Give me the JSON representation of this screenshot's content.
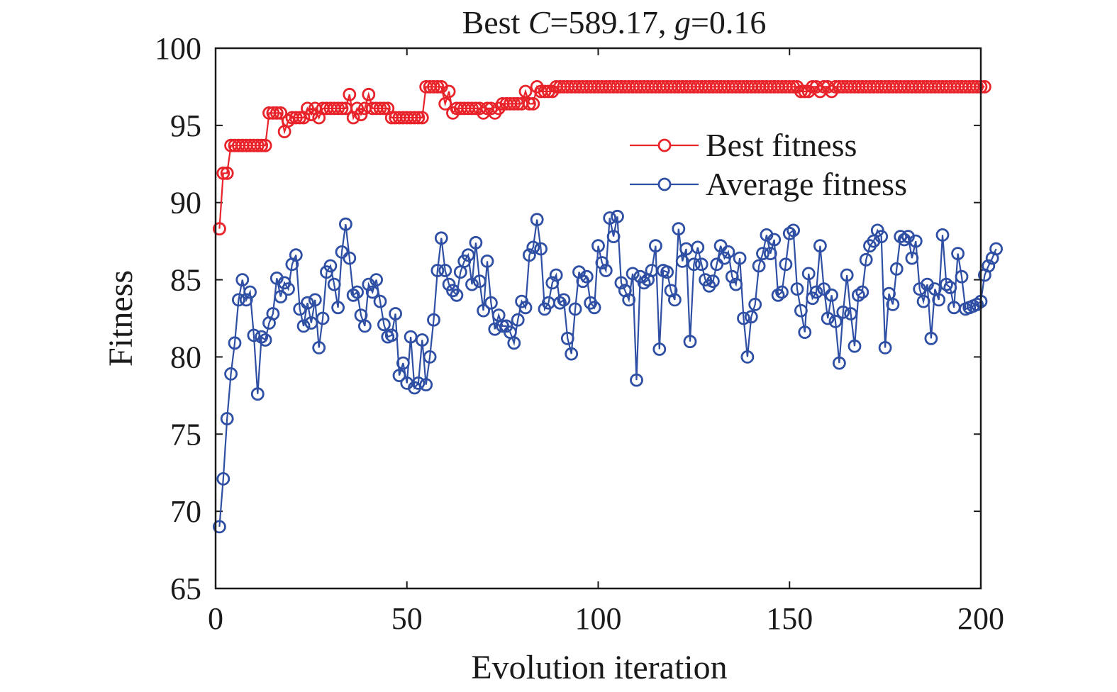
{
  "chart_data": {
    "type": "line",
    "title": {
      "prefix": "Best ",
      "c_symbol": "C",
      "c_value": "=589.17, ",
      "g_symbol": "g",
      "g_value": "=0.16"
    },
    "xlabel": "Evolution iteration",
    "ylabel": "Fitness",
    "xlim": [
      0,
      200
    ],
    "ylim": [
      65,
      100
    ],
    "xticks": [
      0,
      50,
      100,
      150,
      200
    ],
    "yticks": [
      65,
      70,
      75,
      80,
      85,
      90,
      95,
      100
    ],
    "grid": false,
    "legend_position": "upper-right",
    "series": [
      {
        "name": "Best fitness",
        "color": "#e8232a",
        "marker": "open-circle",
        "x_start": 1,
        "x_step": 1,
        "values": [
          88.3,
          91.9,
          91.9,
          93.7,
          93.7,
          93.7,
          93.7,
          93.7,
          93.7,
          93.7,
          93.7,
          93.7,
          93.7,
          95.8,
          95.8,
          95.8,
          95.8,
          94.6,
          95.3,
          95.5,
          95.5,
          95.5,
          95.5,
          96.1,
          95.7,
          96.1,
          95.5,
          96.1,
          96.1,
          96.1,
          96.1,
          96.1,
          96.1,
          96.1,
          97.0,
          95.5,
          96.1,
          95.7,
          96.1,
          97.0,
          96.1,
          96.1,
          96.1,
          96.1,
          96.1,
          95.5,
          95.5,
          95.5,
          95.5,
          95.5,
          95.5,
          95.5,
          95.5,
          95.5,
          97.5,
          97.5,
          97.5,
          97.5,
          97.5,
          96.4,
          97.2,
          95.8,
          96.1,
          96.1,
          96.1,
          96.1,
          96.1,
          96.1,
          96.1,
          95.8,
          96.1,
          96.1,
          95.8,
          96.1,
          96.4,
          96.4,
          96.4,
          96.4,
          96.4,
          96.4,
          97.2,
          96.4,
          96.4,
          97.5,
          97.2,
          97.2,
          97.2,
          97.2,
          97.5,
          97.5,
          97.5,
          97.5,
          97.5,
          97.5,
          97.5,
          97.5,
          97.5,
          97.5,
          97.5,
          97.5,
          97.5,
          97.5,
          97.5,
          97.5,
          97.5,
          97.5,
          97.5,
          97.5,
          97.5,
          97.5,
          97.5,
          97.5,
          97.5,
          97.5,
          97.5,
          97.5,
          97.5,
          97.5,
          97.5,
          97.5,
          97.5,
          97.5,
          97.5,
          97.5,
          97.5,
          97.5,
          97.5,
          97.5,
          97.5,
          97.5,
          97.5,
          97.5,
          97.5,
          97.5,
          97.5,
          97.5,
          97.5,
          97.5,
          97.5,
          97.5,
          97.5,
          97.5,
          97.5,
          97.5,
          97.5,
          97.5,
          97.5,
          97.5,
          97.5,
          97.5,
          97.5,
          97.5,
          97.2,
          97.2,
          97.2,
          97.5,
          97.5,
          97.2,
          97.5,
          97.5,
          97.2,
          97.5,
          97.5,
          97.5,
          97.5,
          97.5,
          97.5,
          97.5,
          97.5,
          97.5,
          97.5,
          97.5,
          97.5,
          97.5,
          97.5,
          97.5,
          97.5,
          97.5,
          97.5,
          97.5,
          97.5,
          97.5,
          97.5,
          97.5,
          97.5,
          97.5,
          97.5,
          97.5,
          97.5,
          97.5,
          97.5,
          97.5,
          97.5,
          97.5,
          97.5,
          97.5,
          97.5,
          97.5,
          97.5,
          97.5,
          97.5
        ]
      },
      {
        "name": "Average fitness",
        "color": "#2e4fa3",
        "marker": "open-circle",
        "x_start": 1,
        "x_step": 1,
        "values": [
          69.0,
          72.1,
          76.0,
          78.9,
          80.9,
          83.7,
          85.0,
          83.7,
          84.2,
          81.4,
          77.6,
          81.3,
          81.1,
          82.2,
          82.8,
          85.1,
          83.9,
          84.8,
          84.4,
          86.0,
          86.6,
          83.1,
          82.0,
          83.5,
          82.2,
          83.7,
          80.6,
          82.5,
          85.5,
          85.9,
          84.7,
          83.2,
          86.8,
          88.6,
          86.4,
          84.0,
          84.2,
          82.7,
          82.0,
          84.7,
          84.2,
          85.0,
          83.6,
          82.1,
          81.3,
          81.4,
          82.8,
          78.8,
          79.6,
          78.3,
          81.3,
          78.0,
          78.3,
          81.1,
          78.2,
          80.0,
          82.4,
          85.6,
          87.7,
          85.6,
          84.7,
          84.3,
          84.0,
          85.5,
          86.2,
          86.6,
          84.7,
          87.4,
          84.9,
          83.0,
          86.2,
          83.5,
          81.8,
          82.7,
          82.0,
          82.0,
          81.6,
          80.9,
          82.4,
          83.6,
          83.2,
          86.6,
          87.1,
          88.9,
          87.0,
          83.1,
          83.5,
          84.8,
          85.3,
          83.5,
          83.7,
          81.2,
          80.2,
          83.1,
          85.5,
          84.9,
          85.2,
          83.5,
          83.2,
          87.2,
          86.1,
          85.6,
          89.0,
          87.8,
          89.1,
          84.8,
          84.3,
          83.7,
          85.4,
          78.5,
          85.2,
          84.8,
          85.0,
          85.6,
          87.2,
          80.5,
          85.6,
          85.5,
          84.3,
          83.7,
          88.3,
          86.2,
          87.0,
          81.0,
          86.0,
          87.1,
          86.0,
          85.0,
          84.6,
          84.9,
          86.0,
          87.2,
          86.4,
          86.8,
          85.2,
          84.7,
          86.4,
          82.5,
          80.0,
          82.6,
          83.4,
          85.9,
          86.7,
          87.9,
          86.7,
          87.6,
          84.0,
          84.2,
          86.0,
          88.0,
          88.2,
          84.4,
          83.0,
          81.6,
          85.4,
          83.8,
          84.2,
          87.2,
          84.4,
          82.5,
          84.0,
          82.3,
          79.6,
          82.9,
          85.3,
          82.8,
          80.7,
          84.0,
          84.2,
          86.3,
          87.2,
          87.5,
          88.2,
          87.8,
          80.6,
          84.1,
          83.4,
          85.7,
          87.8,
          87.6,
          87.8,
          86.4,
          87.5,
          84.4,
          83.6,
          84.7,
          81.2,
          84.4,
          83.7,
          87.9,
          84.7,
          84.5,
          83.2,
          86.7,
          85.2,
          83.1,
          83.2,
          83.3,
          83.4,
          83.6,
          85.3,
          85.9,
          86.4,
          87.0
        ]
      }
    ]
  }
}
